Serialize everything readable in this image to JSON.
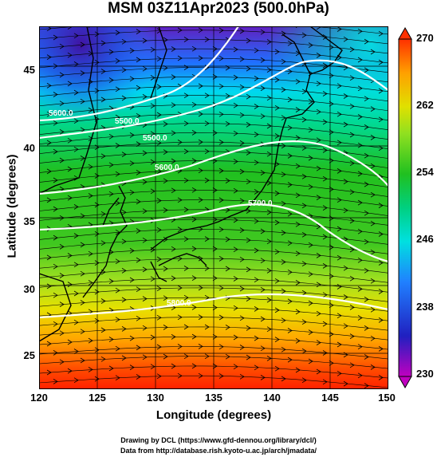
{
  "title": "MSM 03Z11Apr2023 (500.0hPa)",
  "axes": {
    "xlabel": "Longitude (degrees)",
    "ylabel": "Latitude  (degrees)",
    "xticks": [
      "120",
      "125",
      "130",
      "135",
      "140",
      "145",
      "150"
    ],
    "yticks": [
      "45",
      "40",
      "35",
      "30",
      "25"
    ]
  },
  "colorbar": {
    "ticks": [
      "270",
      "262",
      "254",
      "246",
      "238",
      "230"
    ],
    "min": 230,
    "max": 270,
    "colors": [
      "#c000c0",
      "#2020c0",
      "#2080ff",
      "#00e0e0",
      "#00d080",
      "#20c020",
      "#90e020",
      "#e0e000",
      "#ffa000",
      "#ff3000"
    ]
  },
  "contours": {
    "labels": [
      "5600.0",
      "5500.0",
      "5500.0",
      "5600.0",
      "5700.0",
      "5800.0"
    ]
  },
  "credits": {
    "line1": "Drawing by DCL (https://www.gfd-dennou.org/library/dcl/)",
    "line2": "Data from http://database.rish.kyoto-u.ac.jp/arch/jmadata/"
  },
  "chart_data": {
    "type": "heatmap",
    "title": "MSM 03Z11Apr2023 (500.0hPa)",
    "xlabel": "Longitude (degrees)",
    "ylabel": "Latitude  (degrees)",
    "xlim": [
      120,
      150
    ],
    "ylim": [
      22.4,
      47.6
    ],
    "colorbar_range": [
      230,
      270
    ],
    "contour_values": [
      5500.0,
      5600.0,
      5700.0,
      5800.0
    ],
    "grid": true
  }
}
